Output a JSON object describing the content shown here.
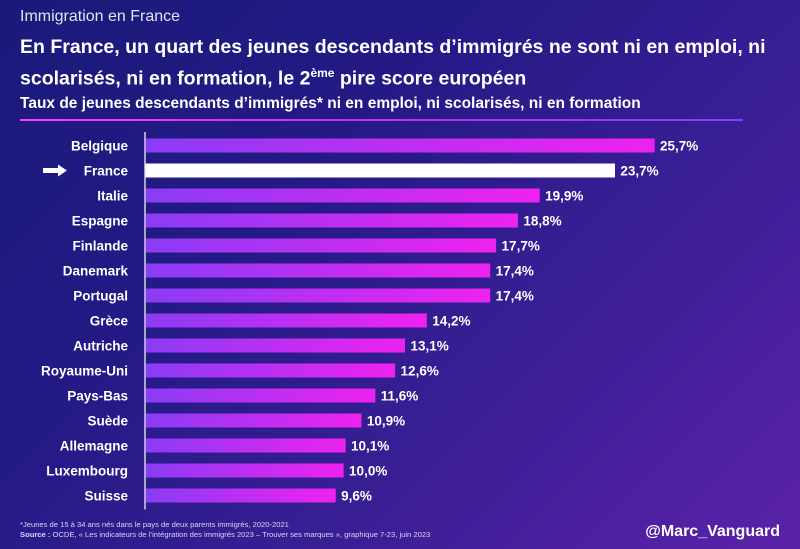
{
  "header": {
    "section_label": "Immigration en France",
    "headline_part1": "En France, un quart des jeunes descendants d’immigrés ne sont ni en emploi, ni scolarisés, ni en formation, le 2",
    "headline_sup": "ème",
    "headline_part2": " pire score européen",
    "subtitle": "Taux de jeunes descendants d’immigrés* ni en emploi, ni scolarisés, ni en formation"
  },
  "chart_data": {
    "type": "bar",
    "orientation": "horizontal",
    "categories": [
      "Belgique",
      "France",
      "Italie",
      "Espagne",
      "Finlande",
      "Danemark",
      "Portugal",
      "Grèce",
      "Autriche",
      "Royaume-Uni",
      "Pays-Bas",
      "Suède",
      "Allemagne",
      "Luxembourg",
      "Suisse"
    ],
    "values": [
      25.7,
      23.7,
      19.9,
      18.8,
      17.7,
      17.4,
      17.4,
      14.2,
      13.1,
      12.6,
      11.6,
      10.9,
      10.1,
      10.0,
      9.6
    ],
    "value_labels": [
      "25,7%",
      "23,7%",
      "19,9%",
      "18,8%",
      "17,7%",
      "17,4%",
      "17,4%",
      "14,2%",
      "13,1%",
      "12,6%",
      "11,6%",
      "10,9%",
      "10,1%",
      "10,0%",
      "9,6%"
    ],
    "highlight": "France",
    "highlight_marker": "arrow-right-icon",
    "colors": {
      "bar_start": "#8a3cf5",
      "bar_end": "#ee22ee",
      "highlight": "#ffffff",
      "axis": "#ffffff"
    },
    "xlim": [
      0,
      25.7
    ],
    "grid": false,
    "legend": "none"
  },
  "footer": {
    "footnote": "*Jeunes de 15 à 34 ans nés dans le pays de deux parents immigrés, 2020-2021",
    "source_label": "Source :",
    "source_text": " OCDE, « Les indicateurs de l’intégration des immigrés 2023 – Trouver ses marques », graphique 7-23, juin 2023",
    "handle": "@Marc_Vanguard"
  }
}
